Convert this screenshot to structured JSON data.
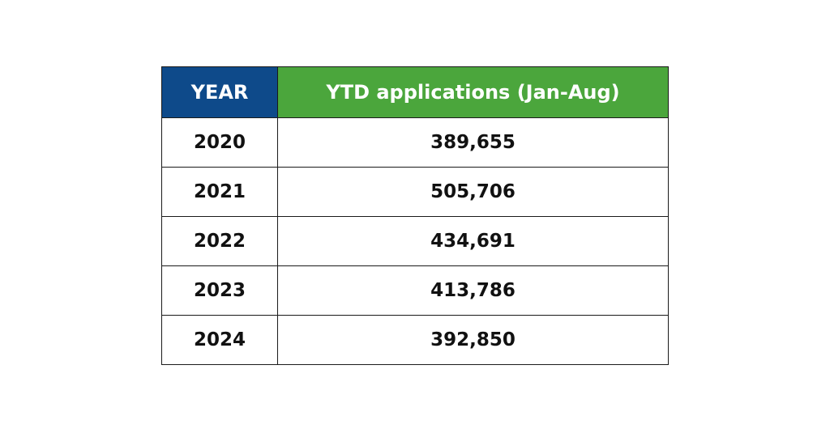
{
  "table": {
    "header": [
      "YEAR",
      "YTD applications (Jan-Aug)"
    ],
    "rows": [
      [
        "2020",
        "389,655"
      ],
      [
        "2021",
        "505,706"
      ],
      [
        "2022",
        "434,691"
      ],
      [
        "2023",
        "413,786"
      ],
      [
        "2024",
        "392,850"
      ]
    ]
  }
}
